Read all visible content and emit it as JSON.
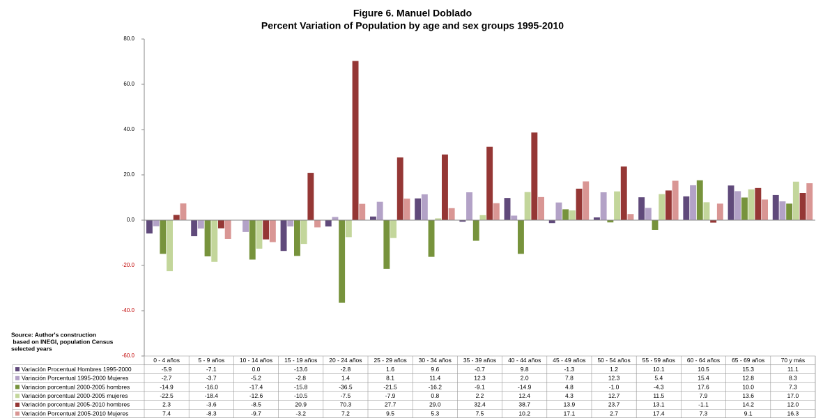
{
  "chart_data": {
    "type": "bar",
    "title": "Figure 6. Manuel Doblado",
    "subtitle": "Percent Variation of Population by age and sex groups 1995-2010",
    "note": [
      "Source: Author's construction",
      " based on INEGI, population Census",
      "selected years"
    ],
    "categories": [
      "0 - 4 años",
      "5 - 9 años",
      "10 - 14 años",
      "15 - 19 años",
      "20 - 24 años",
      "25 - 29 años",
      "30 - 34 años",
      "35 - 39 años",
      "40 - 44 años",
      "45 - 49 años",
      "50 - 54 años",
      "55 - 59 años",
      "60 - 64 años",
      "65 - 69 años",
      "70 y más"
    ],
    "series": [
      {
        "name": "Variación Procentual Hombres 1995-2000",
        "color": "#604a7b",
        "values": [
          -5.9,
          -7.1,
          0.0,
          -13.6,
          -2.8,
          1.6,
          9.6,
          -0.7,
          9.8,
          -1.3,
          1.2,
          10.1,
          10.5,
          15.3,
          11.1
        ],
        "value_labels": [
          "-5.9",
          "-7.1",
          "0.0",
          "-13.6",
          "-2.8",
          "1.6",
          "9.6",
          "-0.7",
          "9.8",
          "-1.3",
          "1.2",
          "10.1",
          "10.5",
          "15.3",
          "11.1"
        ]
      },
      {
        "name": "Variación Porcentual 1995-2000 Mujeres",
        "color": "#b3a2c7",
        "values": [
          -2.7,
          -3.7,
          -5.2,
          -2.8,
          1.4,
          8.1,
          11.4,
          12.3,
          2.0,
          7.8,
          12.3,
          5.4,
          15.4,
          12.8,
          8.3
        ],
        "value_labels": [
          "-2.7",
          "-3.7",
          "-5.2",
          "-2.8",
          "1.4",
          "8.1",
          "11.4",
          "12.3",
          "2.0",
          "7.8",
          "12.3",
          "5.4",
          "15.4",
          "12.8",
          "8.3"
        ]
      },
      {
        "name": "Variacion porcentual 2000-2005 hombres",
        "color": "#77933c",
        "values": [
          -14.9,
          -16.0,
          -17.4,
          -15.8,
          -36.5,
          -21.5,
          -16.2,
          -9.1,
          -14.9,
          4.8,
          -1.0,
          -4.3,
          17.6,
          10.0,
          7.3
        ],
        "value_labels": [
          "-14.9",
          "-16.0",
          "-17.4",
          "-15.8",
          "-36.5",
          "-21.5",
          "-16.2",
          "-9.1",
          "-14.9",
          "4.8",
          "-1.0",
          "-4.3",
          "17.6",
          "10.0",
          "7.3"
        ]
      },
      {
        "name": "Variación porcentual 2000-2005 mujeres",
        "color": "#c3d69b",
        "values": [
          -22.5,
          -18.4,
          -12.6,
          -10.5,
          -7.5,
          -7.9,
          0.8,
          2.2,
          12.4,
          4.3,
          12.7,
          11.5,
          7.9,
          13.6,
          17.0
        ],
        "value_labels": [
          "-22.5",
          "-18.4",
          "-12.6",
          "-10.5",
          "-7.5",
          "-7.9",
          "0.8",
          "2.2",
          "12.4",
          "4.3",
          "12.7",
          "11.5",
          "7.9",
          "13.6",
          "17.0"
        ]
      },
      {
        "name": "Variación porcentual 2005-2010 hombres",
        "color": "#953735",
        "values": [
          2.3,
          -3.6,
          -8.5,
          20.9,
          70.3,
          27.7,
          29.0,
          32.4,
          38.7,
          13.9,
          23.7,
          13.1,
          -1.1,
          14.2,
          12.0
        ],
        "value_labels": [
          "2.3",
          "-3.6",
          "-8.5",
          "20.9",
          "70.3",
          "27.7",
          "29.0",
          "32.4",
          "38.7",
          "13.9",
          "23.7",
          "13.1",
          "-1.1",
          "14.2",
          "12.0"
        ]
      },
      {
        "name": "Variación Porcentual 2005-2010 Mujeres",
        "color": "#d99694",
        "values": [
          7.4,
          -8.3,
          -9.7,
          -3.2,
          7.2,
          9.5,
          5.3,
          7.5,
          10.2,
          17.1,
          2.7,
          17.4,
          7.3,
          9.1,
          16.3
        ],
        "value_labels": [
          "7.4",
          "-8.3",
          "-9.7",
          "-3.2",
          "7.2",
          "9.5",
          "5.3",
          "7.5",
          "10.2",
          "17.1",
          "2.7",
          "17.4",
          "7.3",
          "9.1",
          "16.3"
        ]
      }
    ],
    "ylim": [
      -60,
      80
    ],
    "yticks": [
      {
        "value": -60,
        "label": "-60.0"
      },
      {
        "value": -40,
        "label": "-40.0"
      },
      {
        "value": -20,
        "label": "-20.0"
      },
      {
        "value": 0,
        "label": "0.0"
      },
      {
        "value": 20,
        "label": "20.0"
      },
      {
        "value": 40,
        "label": "40.0"
      },
      {
        "value": 60,
        "label": "60.0"
      },
      {
        "value": 80,
        "label": "80.0"
      }
    ],
    "negative_tick_color": "#c00000",
    "grid": false
  }
}
